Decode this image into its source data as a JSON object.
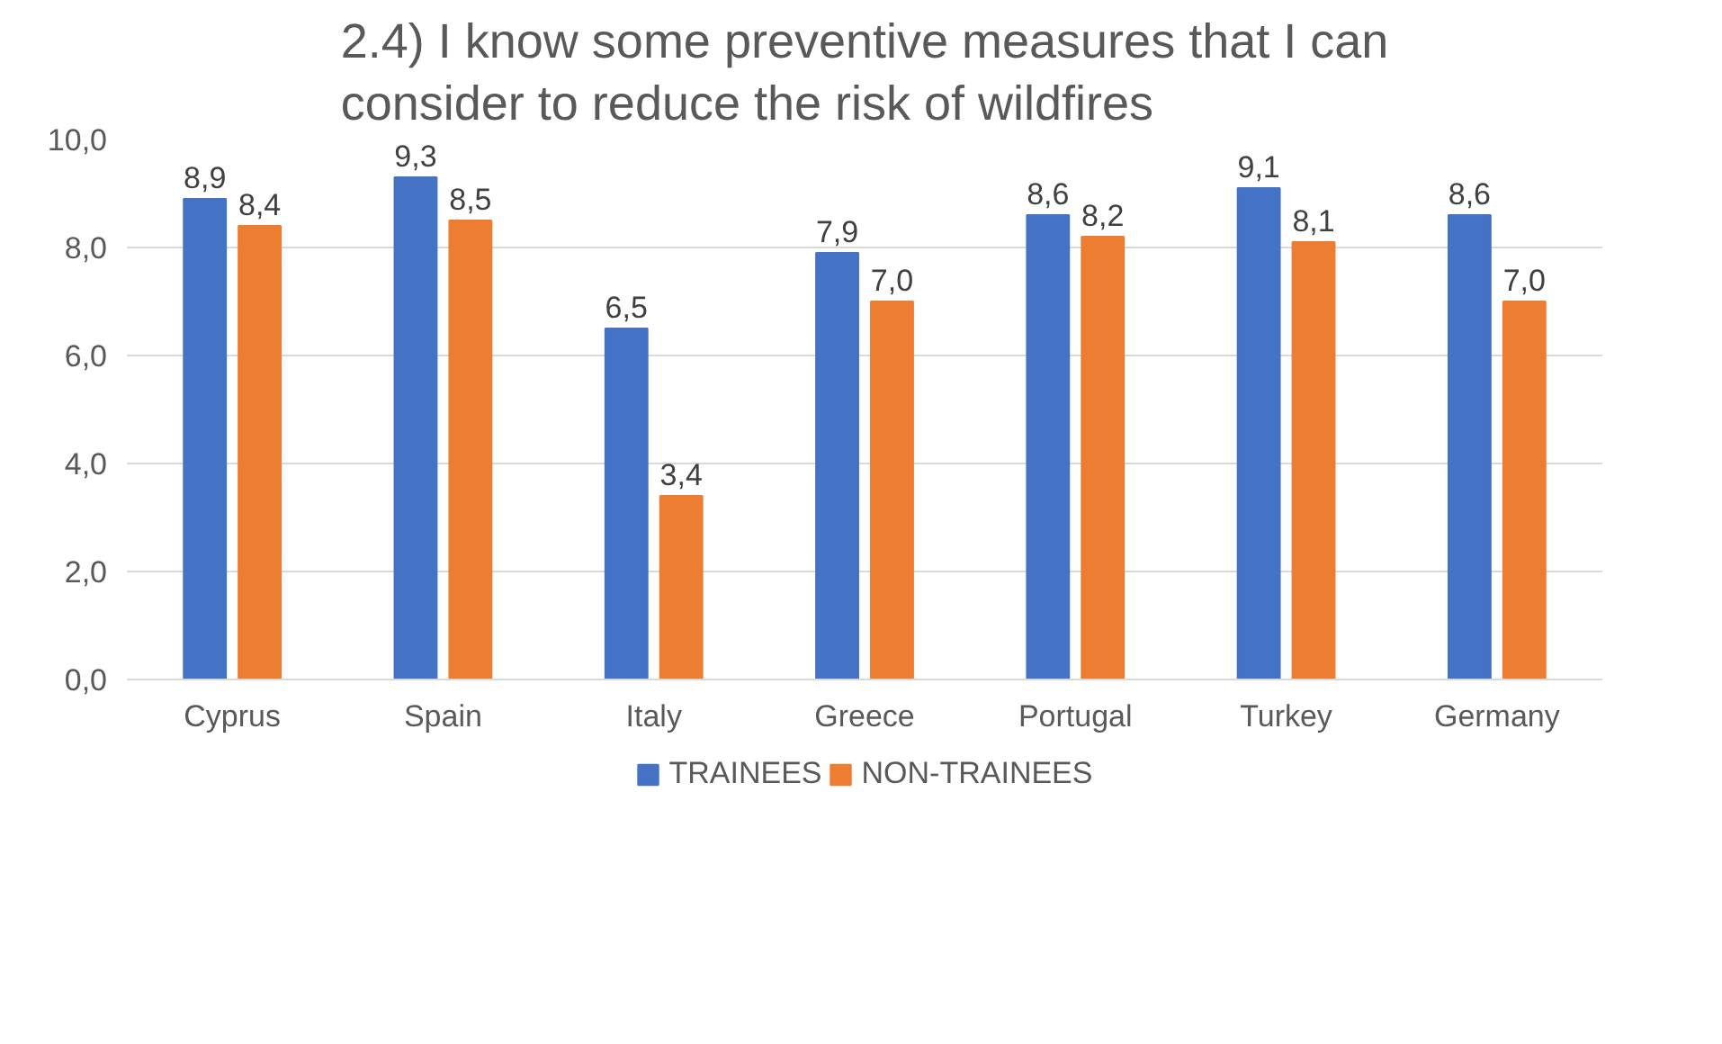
{
  "chart_data": {
    "type": "bar",
    "title": "2.4) I know some preventive measures that I can consider to reduce the risk of wildfires",
    "categories": [
      "Cyprus",
      "Spain",
      "Italy",
      "Greece",
      "Portugal",
      "Turkey",
      "Germany"
    ],
    "series": [
      {
        "name": "TRAINEES",
        "color": "#4472c4",
        "values": [
          8.9,
          9.3,
          6.5,
          7.9,
          8.6,
          9.1,
          8.6
        ],
        "value_labels": [
          "8,9",
          "9,3",
          "6,5",
          "7,9",
          "8,6",
          "9,1",
          "8,6"
        ]
      },
      {
        "name": "NON-TRAINEES",
        "color": "#ed7d31",
        "values": [
          8.4,
          8.5,
          3.4,
          7.0,
          8.2,
          8.1,
          7.0
        ],
        "value_labels": [
          "8,4",
          "8,5",
          "3,4",
          "7,0",
          "8,2",
          "8,1",
          "7,0"
        ]
      }
    ],
    "ylim": [
      0,
      10
    ],
    "yticks": [
      {
        "value": 0,
        "label": "0,0"
      },
      {
        "value": 2,
        "label": "2,0"
      },
      {
        "value": 4,
        "label": "4,0"
      },
      {
        "value": 6,
        "label": "6,0"
      },
      {
        "value": 8,
        "label": "8,0"
      },
      {
        "value": 10,
        "label": "10,0"
      }
    ],
    "grid": "y",
    "legend": "bottom"
  }
}
